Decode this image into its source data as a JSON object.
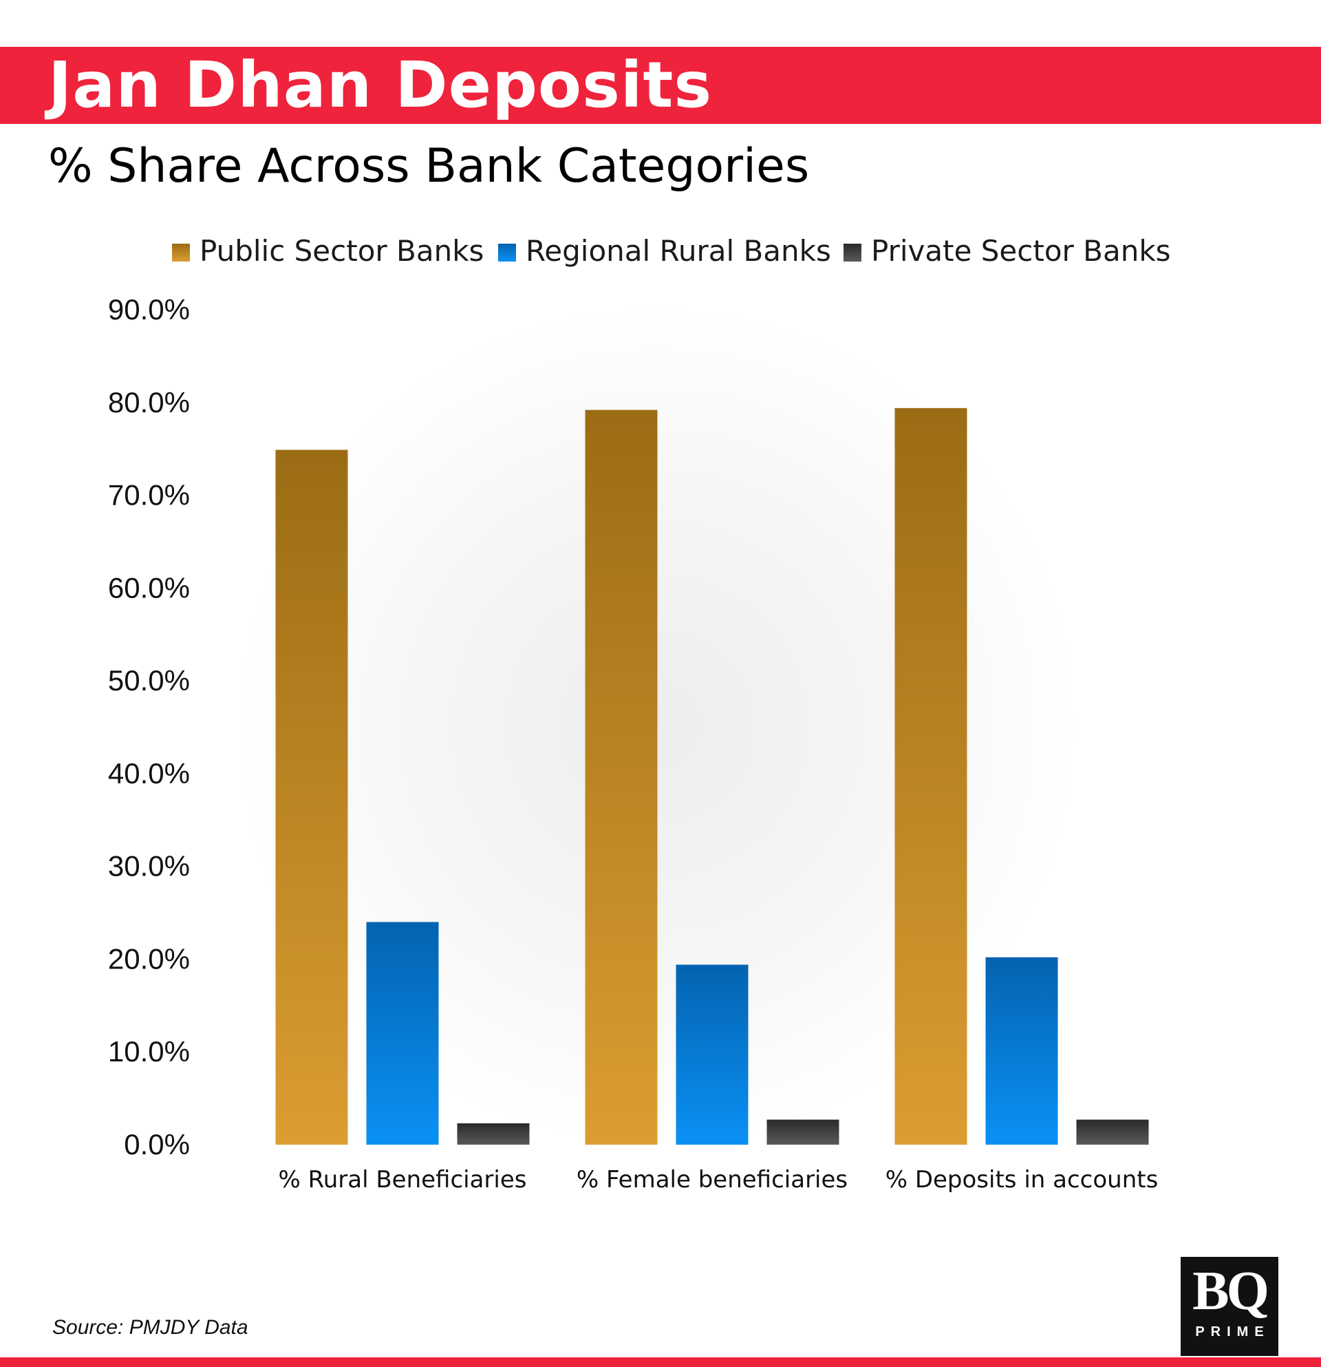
{
  "header": {
    "title": "Jan Dhan Deposits",
    "subtitle": "% Share Across Bank Categories"
  },
  "chart_data": {
    "type": "bar",
    "categories": [
      "% Rural Beneficiaries",
      "% Female beneficiaries",
      "% Deposits in accounts"
    ],
    "series": [
      {
        "name": "Public Sector Banks",
        "values": [
          74.9,
          79.2,
          79.4
        ],
        "color_top": "#9b6c14",
        "color_bottom": "#dc9d32"
      },
      {
        "name": "Regional Rural Banks",
        "values": [
          24.0,
          19.4,
          20.2
        ],
        "color_top": "#0463b0",
        "color_bottom": "#0a91f5"
      },
      {
        "name": "Private Sector Banks",
        "values": [
          2.3,
          2.7,
          2.7
        ],
        "color_top": "#2a2a2a",
        "color_bottom": "#5a5a5a"
      }
    ],
    "y_ticks": [
      "0.0%",
      "10.0%",
      "20.0%",
      "30.0%",
      "40.0%",
      "50.0%",
      "60.0%",
      "70.0%",
      "80.0%",
      "90.0%"
    ],
    "ylim": [
      0,
      90
    ],
    "grid": false,
    "legend": "top"
  },
  "footer": {
    "source": "Source: PMJDY Data",
    "logo_mark": "BQ",
    "logo_sub": "PRIME"
  },
  "colors": {
    "brand_red": "#ef233c"
  }
}
